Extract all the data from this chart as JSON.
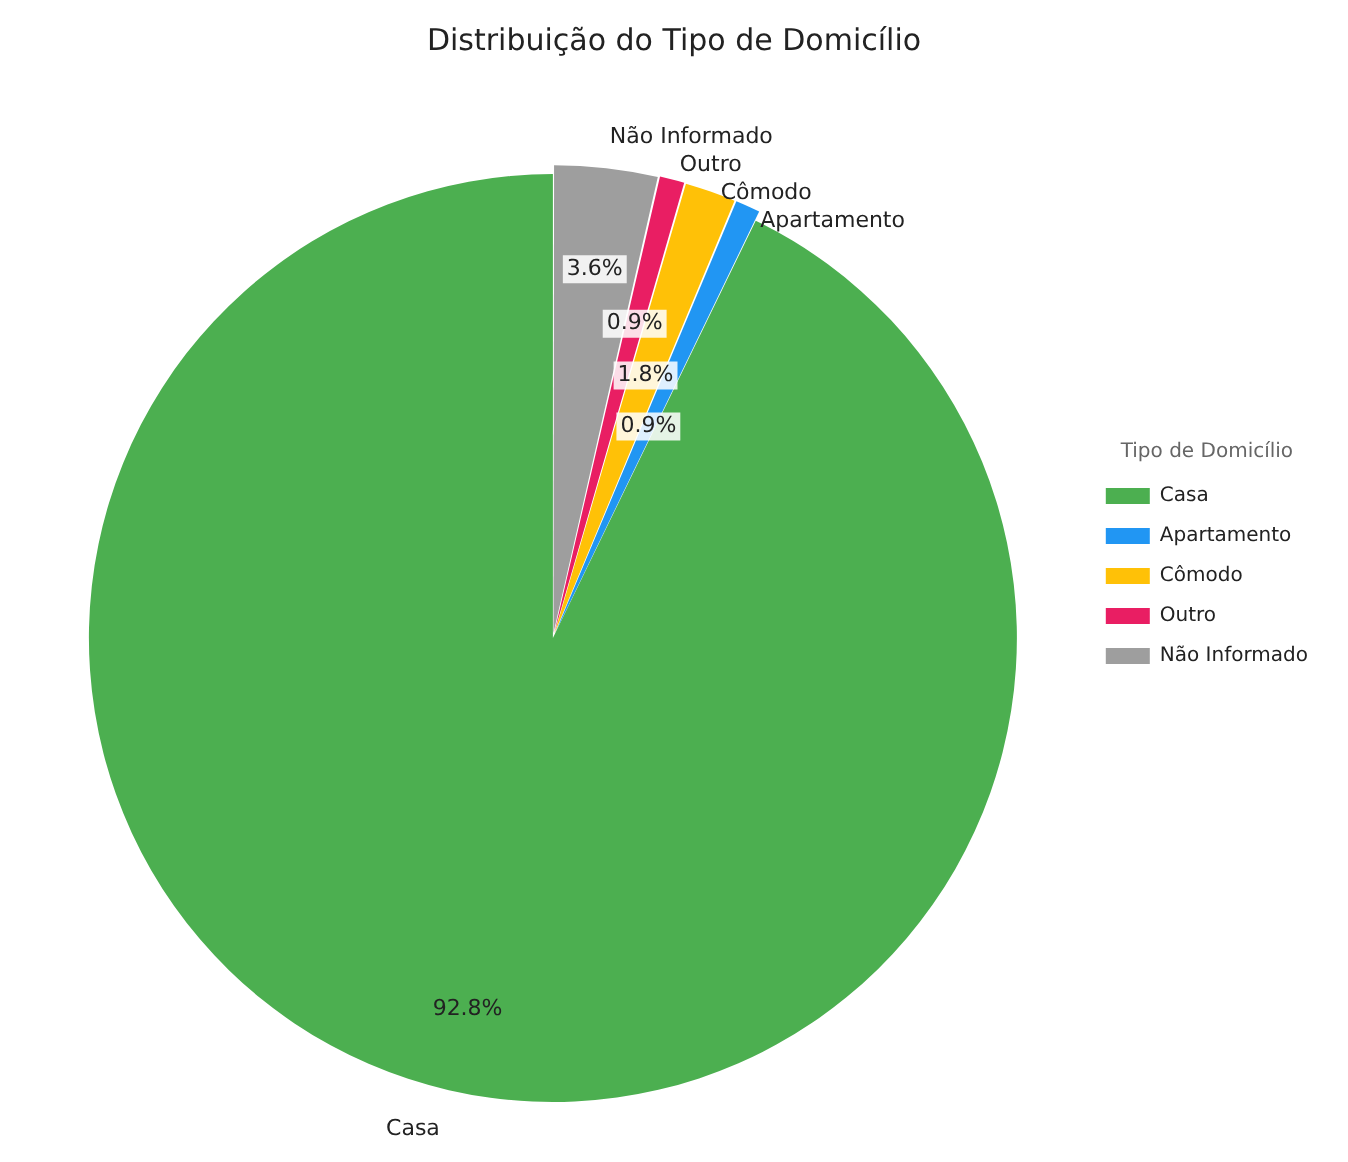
{
  "chart_data": {
    "type": "pie",
    "title": "Distribuição do Tipo de Domicílio",
    "legend_title": "Tipo de Domicílio",
    "legend": "right",
    "categories": [
      "Casa",
      "Apartamento",
      "Cômodo",
      "Outro",
      "Não Informado"
    ],
    "values": [
      92.8,
      0.9,
      1.8,
      0.9,
      3.6
    ],
    "colors": [
      "#4caf50",
      "#2196f3",
      "#ffc107",
      "#e91e63",
      "#9e9e9e"
    ],
    "value_labels": [
      "92.8%",
      "0.9%",
      "1.8%",
      "0.9%",
      "3.6%"
    ]
  }
}
